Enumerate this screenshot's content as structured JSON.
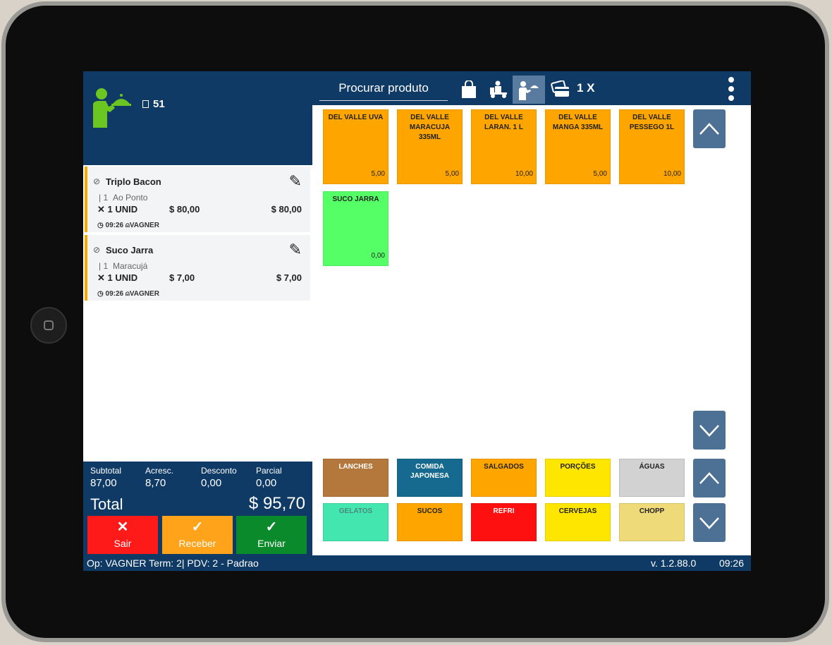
{
  "table": {
    "number": "51"
  },
  "order_items": [
    {
      "name": "Triplo Bacon",
      "mod_qty": "| 1",
      "mod_name": "Ao Ponto",
      "qty": "✕ 1 UNID",
      "unit_price": "$ 80,00",
      "total": "$ 80,00",
      "meta": "09:26",
      "user": "VAGNER"
    },
    {
      "name": "Suco Jarra",
      "mod_qty": "| 1",
      "mod_name": "Maracujá",
      "qty": "✕ 1 UNID",
      "unit_price": "$ 7,00",
      "total": "$ 7,00",
      "meta": "09:26",
      "user": "VAGNER"
    }
  ],
  "totals": {
    "subtotal_label": "Subtotal",
    "subtotal": "87,00",
    "acresc_label": "Acresc.",
    "acresc": "8,70",
    "desconto_label": "Desconto",
    "desconto": "0,00",
    "parcial_label": "Parcial",
    "parcial": "0,00",
    "total_label": "Total",
    "total": "$ 95,70"
  },
  "actions": {
    "sair": "Sair",
    "receber": "Receber",
    "enviar": "Enviar"
  },
  "topbar": {
    "search_placeholder": "Procurar produto",
    "multiplier": "1 X"
  },
  "products": [
    {
      "name": "DEL VALLE UVA",
      "price": "5,00",
      "color": "#ffa500"
    },
    {
      "name": "DEL VALLE MARACUJA 335ML",
      "price": "5,00",
      "color": "#ffa500"
    },
    {
      "name": "DEL VALLE LARAN. 1 L",
      "price": "10,00",
      "color": "#ffa500"
    },
    {
      "name": "DEL VALLE MANGA 335ML",
      "price": "5,00",
      "color": "#ffa500"
    },
    {
      "name": "DEL VALLE PESSEGO 1L",
      "price": "10,00",
      "color": "#ffa500"
    },
    {
      "name": "SUCO JARRA",
      "price": "0,00",
      "color": "#55ff66"
    }
  ],
  "categories": [
    {
      "name": "LANCHES",
      "color": "#b5783c",
      "text": "#ffffff"
    },
    {
      "name": "COMIDA JAPONESA",
      "color": "#176a8f",
      "text": "#ffffff"
    },
    {
      "name": "SALGADOS",
      "color": "#ffa500",
      "text": "#222222"
    },
    {
      "name": "PORÇÕES",
      "color": "#ffe600",
      "text": "#222222"
    },
    {
      "name": "ÁGUAS",
      "color": "#d2d2d2",
      "text": "#222222"
    },
    {
      "name": "GELATOS",
      "color": "#44e6b0",
      "text": "#4a8a7a"
    },
    {
      "name": "SUCOS",
      "color": "#ffa500",
      "text": "#222222"
    },
    {
      "name": "REFRI",
      "color": "#ff1010",
      "text": "#ffffff"
    },
    {
      "name": "CERVEJAS",
      "color": "#ffe600",
      "text": "#222222"
    },
    {
      "name": "CHOPP",
      "color": "#eeda78",
      "text": "#222222"
    }
  ],
  "status": {
    "left": "Op: VAGNER Term: 2| PDV: 2 - Padrao",
    "version": "v. 1.2.88.0",
    "time": "09:26"
  },
  "colors": {
    "header": "#0f3a66",
    "active_icon": "#5a7ba0",
    "arrow": "#4d7095",
    "sair": "#ff1a1a",
    "receber": "#ffa31a",
    "enviar": "#0a8a2a"
  }
}
